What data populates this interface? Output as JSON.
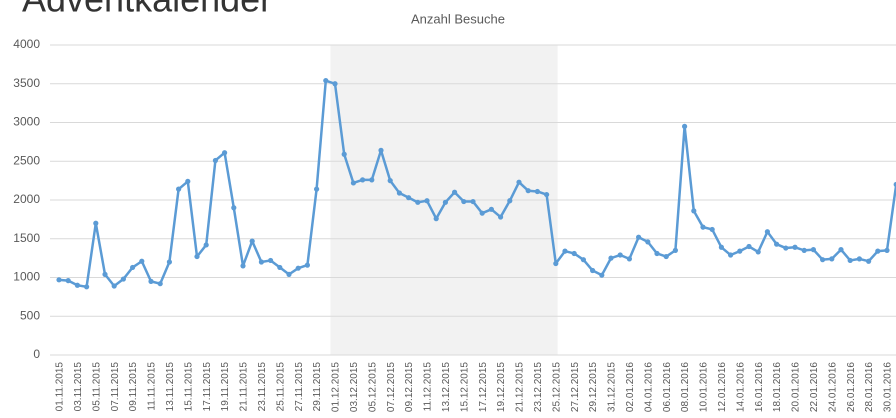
{
  "page_title": "Adventkalender",
  "chart_data": {
    "type": "line",
    "title": "Anzahl Besuche",
    "color": "#5b9bd5",
    "ylim": [
      0,
      4000
    ],
    "yticks": [
      0,
      500,
      1000,
      1500,
      2000,
      2500,
      3000,
      3500,
      4000
    ],
    "grid": true,
    "highlight": {
      "from": "01.12.2015",
      "to": "25.12.2015",
      "color": "#f2f2f2"
    },
    "categories": [
      "01.11.2015",
      null,
      "03.11.2015",
      null,
      "05.11.2015",
      null,
      "07.11.2015",
      null,
      "09.11.2015",
      null,
      "11.11.2015",
      null,
      "13.11.2015",
      null,
      "15.11.2015",
      null,
      "17.11.2015",
      null,
      "19.11.2015",
      null,
      "21.11.2015",
      null,
      "23.11.2015",
      null,
      "25.11.2015",
      null,
      "27.11.2015",
      null,
      "29.11.2015",
      null,
      "01.12.2015",
      null,
      "03.12.2015",
      null,
      "05.12.2015",
      null,
      "07.12.2015",
      null,
      "09.12.2015",
      null,
      "11.12.2015",
      null,
      "13.12.2015",
      null,
      "15.12.2015",
      null,
      "17.12.2015",
      null,
      "19.12.2015",
      null,
      "21.12.2015",
      null,
      "23.12.2015",
      null,
      "25.12.2015",
      null,
      "27.12.2015",
      null,
      "29.12.2015",
      null,
      "31.12.2015",
      null,
      "02.01.2016",
      null,
      "04.01.2016",
      null,
      "06.01.2016",
      null,
      "08.01.2016",
      null,
      "10.01.2016",
      null,
      "12.01.2016",
      null,
      "14.01.2016",
      null,
      "16.01.2016",
      null,
      "18.01.2016",
      null,
      "20.01.2016",
      null,
      "22.01.2016",
      null,
      "24.01.2016",
      null,
      "26.01.2016",
      null,
      "28.01.2016",
      null,
      "30.01.2016",
      null
    ],
    "values": [
      970,
      960,
      900,
      880,
      1700,
      1040,
      890,
      980,
      1130,
      1210,
      950,
      920,
      1200,
      2140,
      2240,
      1270,
      1420,
      2510,
      2610,
      1900,
      1150,
      1470,
      1200,
      1220,
      1130,
      1040,
      1120,
      1160,
      2140,
      3540,
      3500,
      2590,
      2220,
      2260,
      2260,
      2640,
      2250,
      2090,
      2030,
      1970,
      1990,
      1760,
      1970,
      2100,
      1980,
      1980,
      1830,
      1880,
      1780,
      1990,
      2230,
      2120,
      2110,
      2070,
      1180,
      1340,
      1310,
      1230,
      1090,
      1030,
      1250,
      1290,
      1240,
      1520,
      1460,
      1310,
      1270,
      1350,
      2950,
      1860,
      1650,
      1620,
      1390,
      1290,
      1340,
      1400,
      1330,
      1590,
      1430,
      1380,
      1390,
      1350,
      1360,
      1230,
      1240,
      1360,
      1220,
      1240,
      1210,
      1340,
      1350,
      2200
    ]
  }
}
